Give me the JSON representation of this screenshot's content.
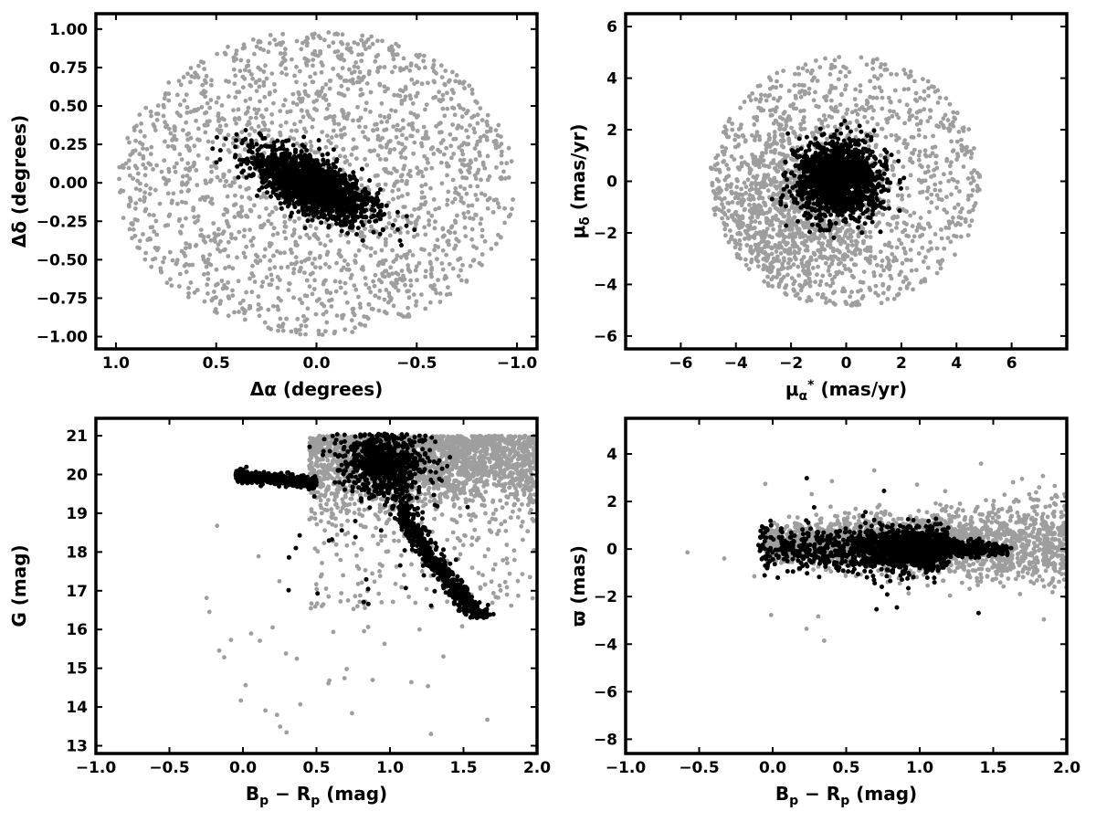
{
  "colors": {
    "field": "#9e9e9e",
    "members": "#000000"
  },
  "chart_data": [
    {
      "type": "scatter",
      "panel": "top-left",
      "xlabel": "Δα (degrees)",
      "ylabel": "Δδ (degrees)",
      "xlim": [
        1.1,
        -1.1
      ],
      "ylim": [
        -1.08,
        1.1
      ],
      "x_inverted": true,
      "xticks": [
        1.0,
        0.5,
        0.0,
        -0.5,
        -1.0
      ],
      "xtick_labels": [
        "1.0",
        "0.5",
        "0.0",
        "−0.5",
        "−1.0"
      ],
      "yticks": [
        1.0,
        0.75,
        0.5,
        0.25,
        0.0,
        -0.25,
        -0.5,
        -0.75,
        -1.0
      ],
      "ytick_labels": [
        "1.00",
        "0.75",
        "0.50",
        "0.25",
        "0.00",
        "−0.25",
        "−0.50",
        "−0.75",
        "−1.00"
      ],
      "grid": false,
      "series": [
        {
          "role": "field",
          "color": "#9e9e9e",
          "distribution": "uniform disk, radius 1.0 deg, centered at (0, 0)",
          "approx_points": 1900
        },
        {
          "role": "members",
          "color": "#000000",
          "distribution": "dense core at (0.05, 0.0) elongated from (0.4, 0.3) to (-0.5, -0.35)",
          "approx_points": 1700
        }
      ]
    },
    {
      "type": "scatter",
      "panel": "top-right",
      "xlabel": "μα* (mas/yr)",
      "ylabel": "μδ (mas/yr)",
      "xlim": [
        -8,
        8
      ],
      "ylim": [
        -6.5,
        6.5
      ],
      "xticks": [
        -6,
        -4,
        -2,
        0,
        2,
        4,
        6
      ],
      "xtick_labels": [
        "−6",
        "−4",
        "−2",
        "0",
        "2",
        "4",
        "6"
      ],
      "yticks": [
        6,
        4,
        2,
        0,
        -2,
        -4,
        -6
      ],
      "ytick_labels": [
        "6",
        "4",
        "2",
        "0",
        "−2",
        "−4",
        "−6"
      ],
      "grid": false,
      "series": [
        {
          "role": "field",
          "color": "#9e9e9e",
          "distribution": "disk radius 5 mas/yr centered at (0, 0); denser toward (-2, -1)",
          "approx_points": 2000
        },
        {
          "role": "members",
          "color": "#000000",
          "distribution": "compact clump centered at (-0.3, 0.0), radius about 2.5 mas/yr",
          "approx_points": 1500
        }
      ]
    },
    {
      "type": "scatter",
      "panel": "bottom-left",
      "xlabel": "Bp − Rp (mag)",
      "ylabel": "G (mag)",
      "xlim": [
        -1.0,
        2.0
      ],
      "ylim": [
        12.8,
        21.45
      ],
      "y_inverted": true,
      "xticks": [
        -1.0,
        -0.5,
        0.0,
        0.5,
        1.0,
        1.5,
        2.0
      ],
      "xtick_labels": [
        "−1.0",
        "−0.5",
        "0.0",
        "0.5",
        "1.0",
        "1.5",
        "2.0"
      ],
      "yticks": [
        21,
        20,
        19,
        18,
        17,
        16,
        15,
        14,
        13
      ],
      "ytick_labels": [
        "21",
        "20",
        "19",
        "18",
        "17",
        "16",
        "15",
        "14",
        "13"
      ],
      "grid": false,
      "series": [
        {
          "role": "field",
          "color": "#9e9e9e",
          "distribution": "faint stars G 18.5–21 over Bp−Rp 0.5–2.0, sparse brighter scatter",
          "approx_points": 2400
        },
        {
          "role": "members",
          "color": "#000000",
          "distribution": "horizontal branch G≈19.9 at Bp−Rp 0.0–0.5; red giant branch from (1.0, 20.0) to (1.6, 16.3); subgiants G 20–21 at Bp−Rp 0.7–1.2",
          "approx_points": 1900
        }
      ]
    },
    {
      "type": "scatter",
      "panel": "bottom-right",
      "xlabel": "Bp − Rp (mag)",
      "ylabel": "ϖ (mas)",
      "xlim": [
        -1.0,
        2.0
      ],
      "ylim": [
        -8.6,
        5.5
      ],
      "xticks": [
        -1.0,
        -0.5,
        0.0,
        0.5,
        1.0,
        1.5,
        2.0
      ],
      "xtick_labels": [
        "−1.0",
        "−0.5",
        "0.0",
        "0.5",
        "1.0",
        "1.5",
        "2.0"
      ],
      "yticks": [
        4,
        2,
        0,
        -2,
        -4,
        -6,
        -8
      ],
      "ytick_labels": [
        "4",
        "2",
        "0",
        "−2",
        "−4",
        "−6",
        "−8"
      ],
      "grid": false,
      "series": [
        {
          "role": "field",
          "color": "#9e9e9e",
          "distribution": "band around ϖ≈0.3 spread ±1.5 mas over Bp−Rp 0.0–2.0",
          "approx_points": 2200
        },
        {
          "role": "members",
          "color": "#000000",
          "distribution": "band around ϖ≈0.0 spread ±0.8 mas over Bp−Rp −0.1–1.6",
          "approx_points": 1800
        }
      ]
    }
  ]
}
